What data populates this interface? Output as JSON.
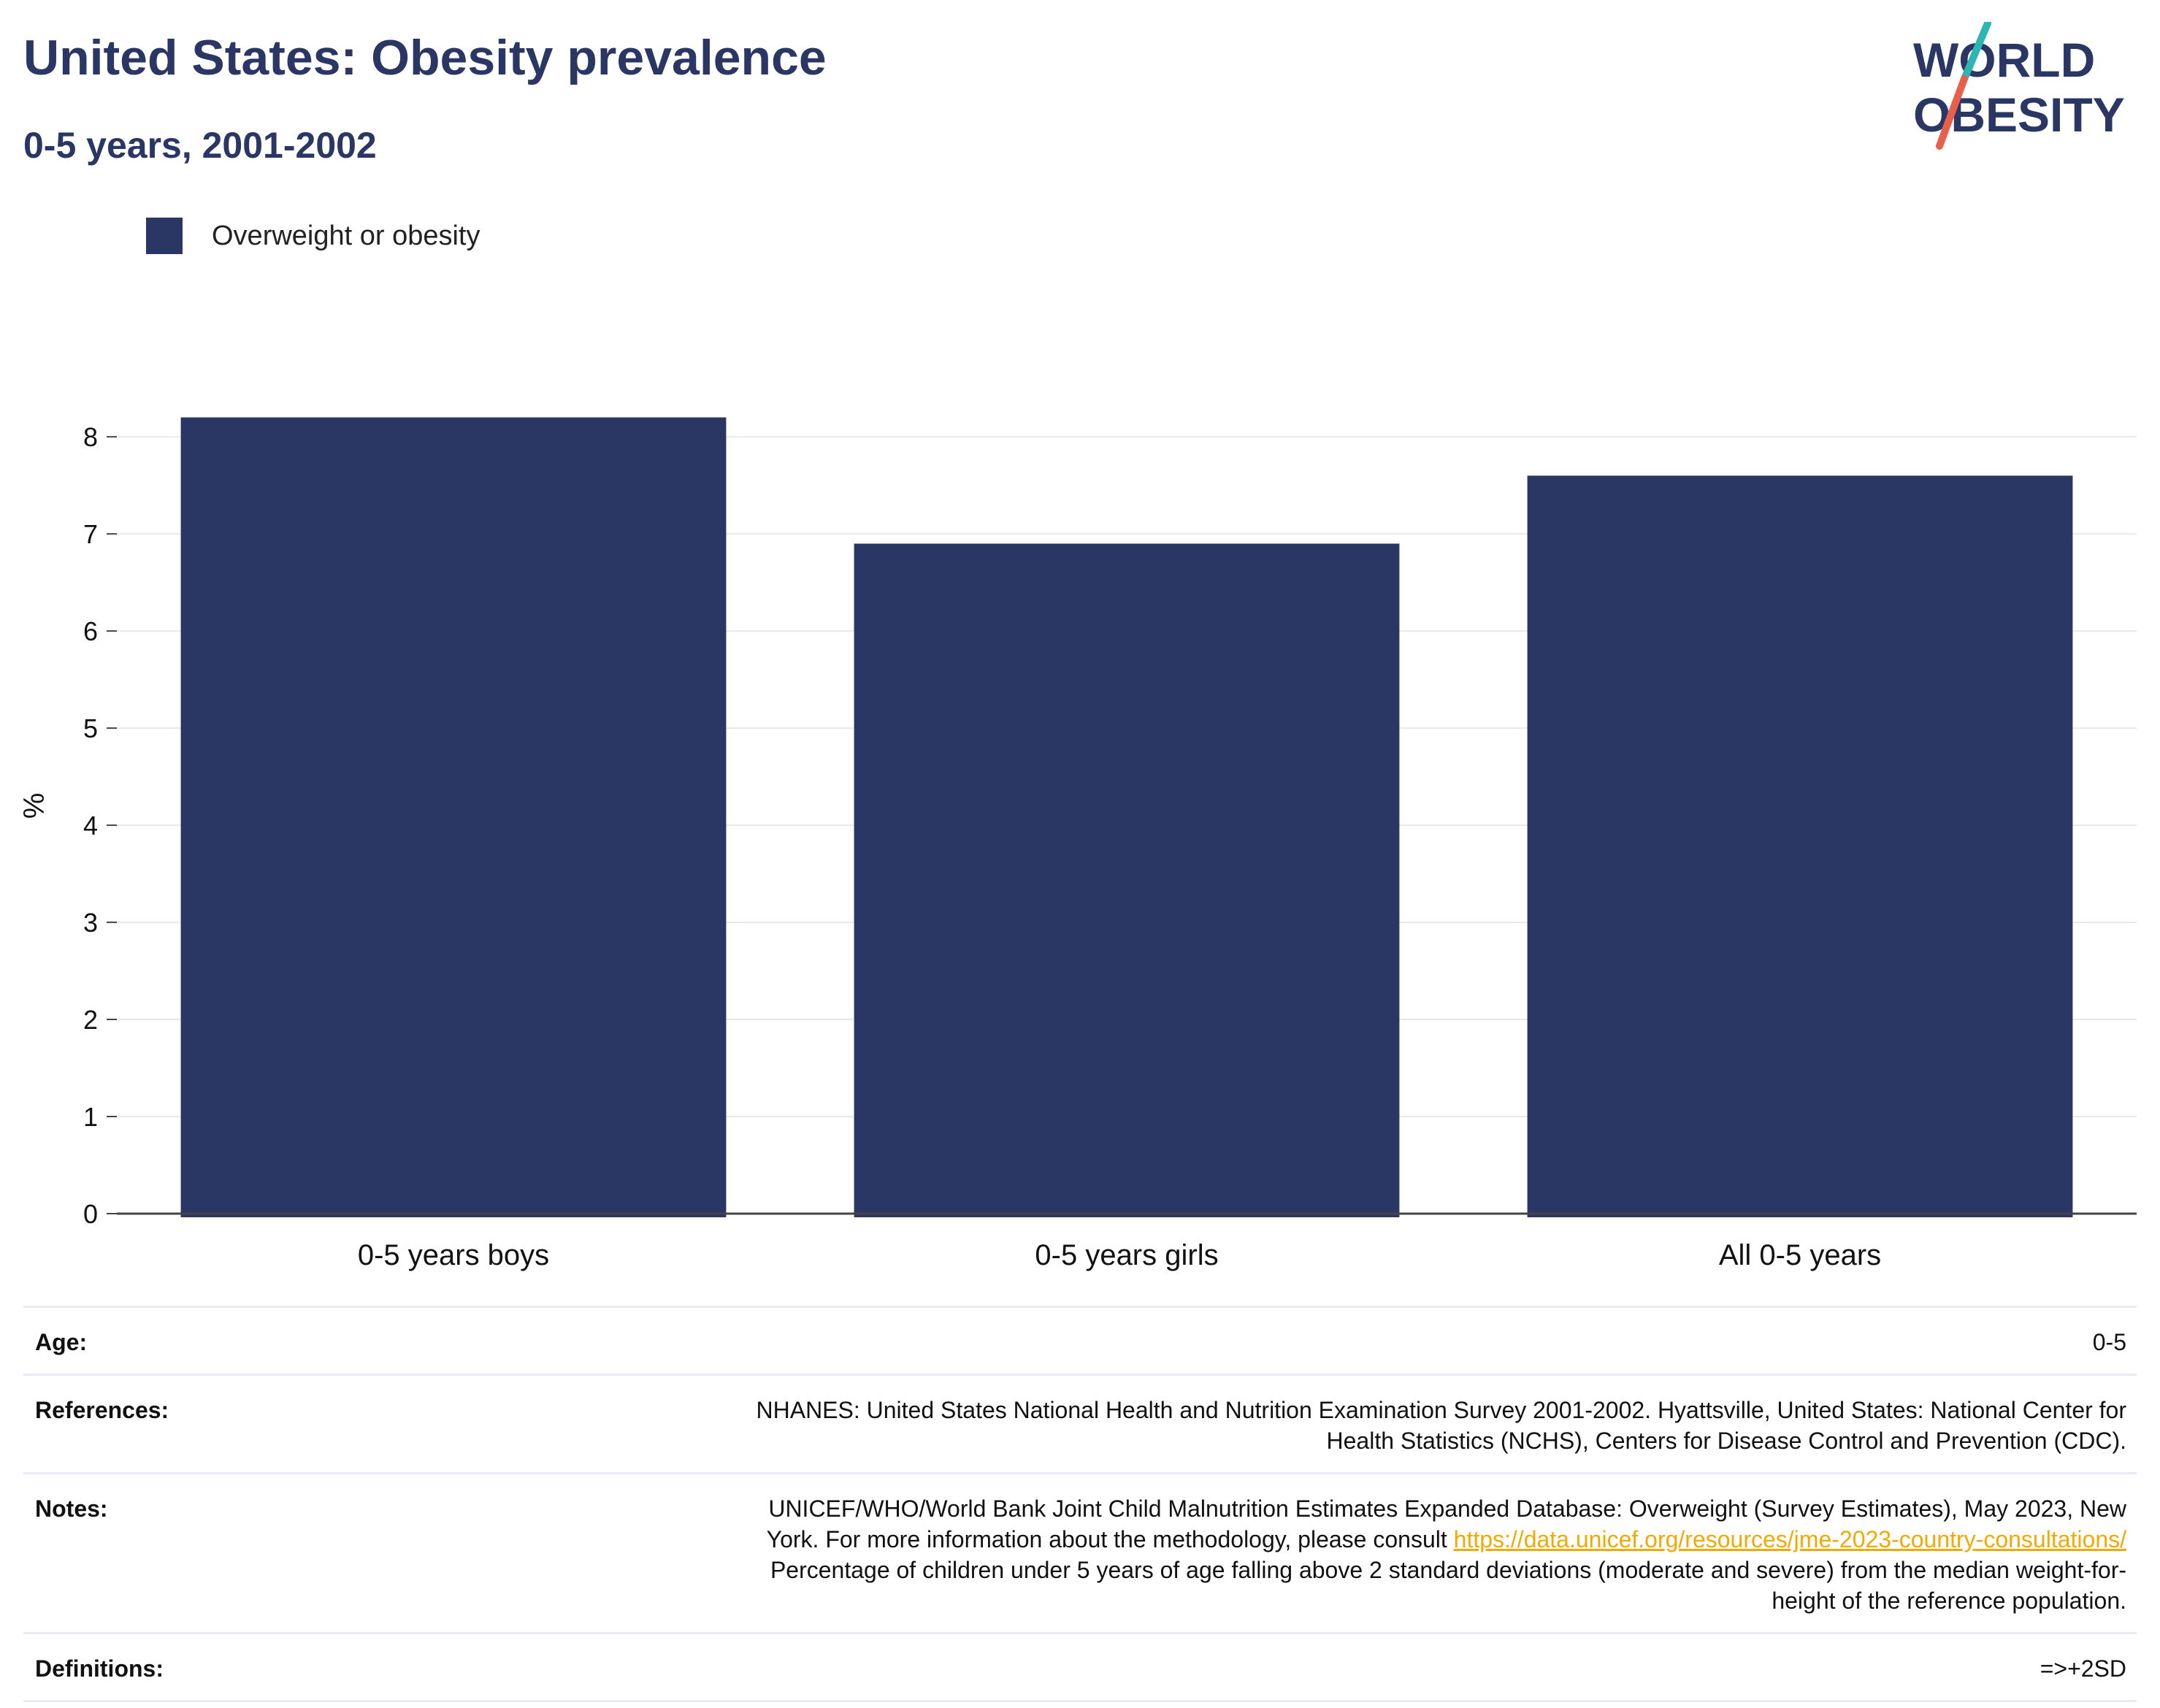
{
  "header": {
    "title": "United States: Obesity prevalence",
    "subtitle": "0-5 years, 2001-2002"
  },
  "logo": {
    "line1": "WORLD",
    "line2": "OBESITY",
    "colors": {
      "text": "#2a3663",
      "slash_top": "#2bb6b4",
      "slash_bottom": "#e8604c"
    }
  },
  "legend": {
    "label": "Overweight or obesity",
    "color": "#2a3663"
  },
  "chart_data": {
    "type": "bar",
    "title": "United States: Obesity prevalence",
    "subtitle": "0-5 years, 2001-2002",
    "categories": [
      "0-5 years boys",
      "0-5 years girls",
      "All 0-5 years"
    ],
    "series": [
      {
        "name": "Overweight or obesity",
        "values": [
          8.2,
          6.9,
          7.6
        ],
        "color": "#2a3663"
      }
    ],
    "xlabel": "",
    "ylabel": "%",
    "ylim": [
      0,
      8.4
    ],
    "yticks": [
      0,
      1,
      2,
      3,
      4,
      5,
      6,
      7,
      8
    ],
    "grid": true,
    "legend_position": "top-left"
  },
  "info": {
    "age_label": "Age:",
    "age_value": "0-5",
    "references_label": "References:",
    "references_line1": "NHANES: United States National Health and Nutrition Examination Survey 2001-2002. Hyattsville, United States: National Center for",
    "references_line2": "Health Statistics (NCHS), Centers for Disease Control and Prevention (CDC).",
    "notes_label": "Notes:",
    "notes_line1": "UNICEF/WHO/World Bank Joint Child Malnutrition Estimates Expanded Database: Overweight (Survey Estimates), May 2023, New",
    "notes_line2_prefix": "York. For more information about the methodology, please consult",
    "notes_link": "https://data.unicef.org/resources/jme-2023-country-consultations/",
    "notes_line3": "Percentage of children under 5 years of age falling above 2 standard deviations (moderate and severe) from the median weight-for-",
    "notes_line4": "height of the reference population.",
    "definitions_label": "Definitions:",
    "definitions_value": "=>+2SD"
  }
}
